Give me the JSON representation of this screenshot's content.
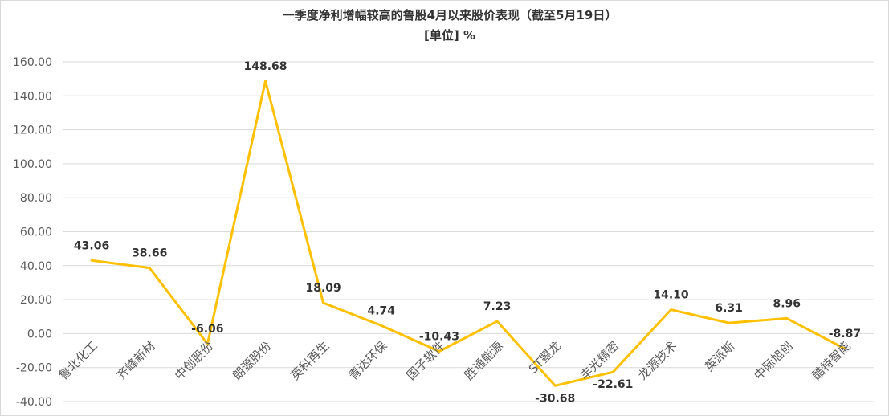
{
  "chart_data": {
    "type": "line",
    "title": "一季度净利增幅较高的鲁股4月以来股价表现（截至5月19日）",
    "subtitle": "[单位] %",
    "categories": [
      "鲁北化工",
      "齐峰新材",
      "中创股份",
      "朗源股份",
      "英科再生",
      "青达环保",
      "国子软件",
      "胜通能源",
      "ST曌龙",
      "丰光精密",
      "龙源技术",
      "英派斯",
      "中际旭创",
      "酷特智能"
    ],
    "values": [
      43.06,
      38.66,
      -6.06,
      148.68,
      18.09,
      4.74,
      -10.43,
      7.23,
      -30.68,
      -22.61,
      14.1,
      6.31,
      8.96,
      -8.87
    ],
    "data_labels": [
      "43.06",
      "38.66",
      "-6.06",
      "148.68",
      "18.09",
      "4.74",
      "-10.43",
      "7.23",
      "-30.68",
      "-22.61",
      "14.10",
      "6.31",
      "8.96",
      "-8.87"
    ],
    "y_ticks": [
      "-40.00",
      "-20.00",
      "0.00",
      "20.00",
      "40.00",
      "60.00",
      "80.00",
      "100.00",
      "120.00",
      "140.00",
      "160.00"
    ],
    "ylim": [
      -40,
      160
    ],
    "grid": true,
    "legend": "none",
    "line_color": "#FFC000",
    "grid_color": "#D9D9D9"
  }
}
